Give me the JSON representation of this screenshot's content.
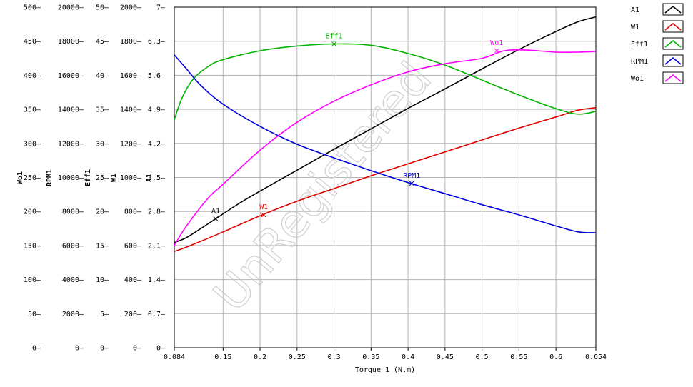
{
  "chart_data": {
    "type": "line",
    "xlabel": "Torque 1 (N.m)",
    "xlim": [
      0.084,
      0.654
    ],
    "x_ticks": [
      "0.084",
      "0.15",
      "0.2",
      "0.25",
      "0.3",
      "0.35",
      "0.4",
      "0.45",
      "0.5",
      "0.55",
      "0.6",
      "0.654"
    ],
    "x_tick_values": [
      0.084,
      0.15,
      0.2,
      0.25,
      0.3,
      0.35,
      0.4,
      0.45,
      0.5,
      0.55,
      0.6,
      0.654
    ],
    "grid": true,
    "legend_position": "right",
    "watermark": "UnRegistered",
    "axes": [
      {
        "id": "wo1",
        "label": "Wo1",
        "ylim": [
          0,
          500
        ],
        "ticks": [
          "0",
          "50",
          "100",
          "150",
          "200",
          "250",
          "300",
          "350",
          "400",
          "450",
          "500"
        ]
      },
      {
        "id": "rpm1",
        "label": "RPM1",
        "ylim": [
          0,
          20000
        ],
        "ticks": [
          "0",
          "2000",
          "4000",
          "6000",
          "8000",
          "10000",
          "12000",
          "14000",
          "16000",
          "18000",
          "20000"
        ]
      },
      {
        "id": "eff1",
        "label": "Eff1",
        "ylim": [
          0,
          50
        ],
        "ticks": [
          "0",
          "5",
          "10",
          "15",
          "20",
          "25",
          "30",
          "35",
          "40",
          "45",
          "50"
        ]
      },
      {
        "id": "w1",
        "label": "W1",
        "ylim": [
          0,
          2000
        ],
        "ticks": [
          "0",
          "200",
          "400",
          "600",
          "800",
          "1000",
          "1200",
          "1400",
          "1600",
          "1800",
          "2000"
        ]
      },
      {
        "id": "a1",
        "label": "A1",
        "ylim": [
          0,
          7
        ],
        "ticks": [
          "0",
          "0.7",
          "1.4",
          "2.1",
          "2.8",
          "3.5",
          "4.2",
          "4.9",
          "5.6",
          "6.3",
          "7"
        ]
      }
    ],
    "series": [
      {
        "name": "A1",
        "axis": "a1",
        "color": "#000000",
        "x": [
          0.084,
          0.1,
          0.12,
          0.14,
          0.17,
          0.2,
          0.25,
          0.3,
          0.35,
          0.4,
          0.45,
          0.5,
          0.55,
          0.6,
          0.63,
          0.654
        ],
        "y": [
          2.16,
          2.26,
          2.45,
          2.65,
          2.95,
          3.22,
          3.65,
          4.08,
          4.5,
          4.92,
          5.32,
          5.73,
          6.13,
          6.5,
          6.7,
          6.8
        ],
        "marker": {
          "x": 0.14,
          "y": 2.65,
          "label": "A1"
        }
      },
      {
        "name": "W1",
        "axis": "w1",
        "color": "#e00000",
        "x": [
          0.084,
          0.1,
          0.12,
          0.15,
          0.2,
          0.25,
          0.3,
          0.35,
          0.4,
          0.45,
          0.5,
          0.55,
          0.6,
          0.63,
          0.654
        ],
        "y": [
          565,
          590,
          625,
          680,
          775,
          860,
          935,
          1010,
          1080,
          1150,
          1220,
          1290,
          1355,
          1395,
          1410
        ],
        "marker": {
          "x": 0.205,
          "y": 780,
          "label": "W1"
        }
      },
      {
        "name": "Eff1",
        "axis": "eff1",
        "color": "#00b400",
        "x": [
          0.084,
          0.095,
          0.11,
          0.13,
          0.15,
          0.2,
          0.25,
          0.3,
          0.35,
          0.4,
          0.45,
          0.5,
          0.55,
          0.6,
          0.63,
          0.654
        ],
        "y": [
          33.5,
          36.8,
          39.5,
          41.3,
          42.3,
          43.6,
          44.3,
          44.6,
          44.4,
          43.2,
          41.5,
          39.3,
          37.1,
          35.1,
          34.3,
          34.7
        ],
        "marker": {
          "x": 0.3,
          "y": 44.6,
          "label": "Eff1"
        }
      },
      {
        "name": "RPM1",
        "axis": "rpm1",
        "color": "#0000e0",
        "x": [
          0.084,
          0.1,
          0.12,
          0.15,
          0.2,
          0.25,
          0.3,
          0.35,
          0.4,
          0.45,
          0.5,
          0.55,
          0.6,
          0.63,
          0.654
        ],
        "y": [
          17200,
          16400,
          15400,
          14300,
          13000,
          11950,
          11150,
          10400,
          9700,
          9050,
          8400,
          7800,
          7150,
          6800,
          6750
        ],
        "marker": {
          "x": 0.405,
          "y": 9650,
          "label": "RPM1"
        }
      },
      {
        "name": "Wo1",
        "axis": "wo1",
        "color": "#ff00ff",
        "x": [
          0.084,
          0.1,
          0.13,
          0.15,
          0.2,
          0.25,
          0.3,
          0.35,
          0.4,
          0.45,
          0.5,
          0.53,
          0.56,
          0.6,
          0.63,
          0.654
        ],
        "y": [
          150,
          178,
          220,
          240,
          290,
          331,
          362,
          386,
          405,
          417,
          425,
          436,
          437,
          434,
          434,
          435
        ],
        "marker": {
          "x": 0.52,
          "y": 436,
          "label": "Wo1"
        }
      }
    ]
  }
}
